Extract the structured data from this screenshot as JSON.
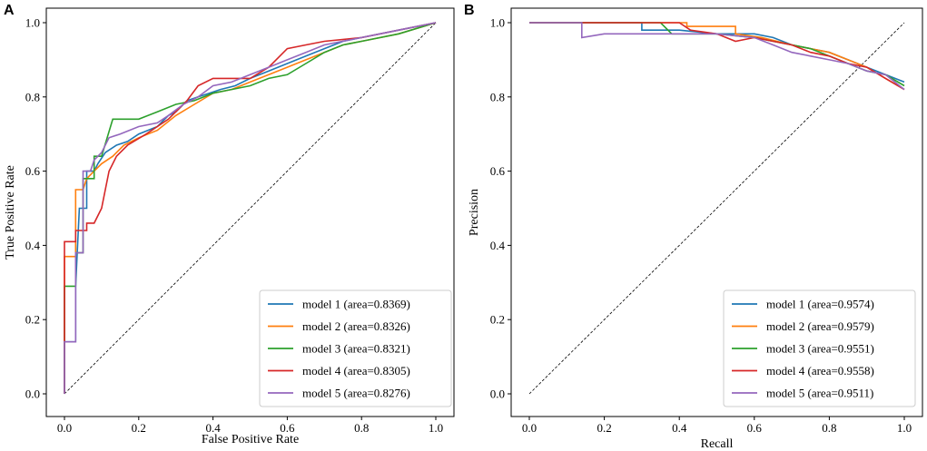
{
  "chart_data": [
    {
      "type": "line",
      "panel": "A",
      "xlabel": "False Positive Rate",
      "ylabel": "True Positive Rate",
      "xlim": [
        0.0,
        1.0
      ],
      "ylim": [
        0.0,
        1.0
      ],
      "xticks": [
        "0.0",
        "0.2",
        "0.4",
        "0.6",
        "0.8",
        "1.0"
      ],
      "yticks": [
        "0.0",
        "0.2",
        "0.4",
        "0.6",
        "0.8",
        "1.0"
      ],
      "legend_position": "lower-right",
      "diagonal": [
        [
          0,
          0
        ],
        [
          1,
          1
        ]
      ],
      "series": [
        {
          "name": "model 1 (area=0.8369)",
          "color": "#1f77b4",
          "points": [
            [
              0,
              0
            ],
            [
              0,
              0.14
            ],
            [
              0.03,
              0.14
            ],
            [
              0.03,
              0.29
            ],
            [
              0.04,
              0.5
            ],
            [
              0.06,
              0.5
            ],
            [
              0.06,
              0.6
            ],
            [
              0.08,
              0.6
            ],
            [
              0.09,
              0.62
            ],
            [
              0.11,
              0.65
            ],
            [
              0.14,
              0.67
            ],
            [
              0.17,
              0.68
            ],
            [
              0.2,
              0.7
            ],
            [
              0.25,
              0.72
            ],
            [
              0.28,
              0.75
            ],
            [
              0.3,
              0.76
            ],
            [
              0.33,
              0.79
            ],
            [
              0.36,
              0.8
            ],
            [
              0.39,
              0.81
            ],
            [
              0.42,
              0.82
            ],
            [
              0.46,
              0.83
            ],
            [
              0.5,
              0.85
            ],
            [
              0.55,
              0.87
            ],
            [
              0.6,
              0.89
            ],
            [
              0.65,
              0.91
            ],
            [
              0.7,
              0.93
            ],
            [
              0.75,
              0.95
            ],
            [
              0.8,
              0.96
            ],
            [
              0.9,
              0.98
            ],
            [
              1,
              1
            ]
          ]
        },
        {
          "name": "model 2 (area=0.8326)",
          "color": "#ff7f0e",
          "points": [
            [
              0,
              0
            ],
            [
              0,
              0.37
            ],
            [
              0.03,
              0.37
            ],
            [
              0.03,
              0.55
            ],
            [
              0.05,
              0.55
            ],
            [
              0.06,
              0.58
            ],
            [
              0.08,
              0.6
            ],
            [
              0.1,
              0.62
            ],
            [
              0.13,
              0.64
            ],
            [
              0.16,
              0.67
            ],
            [
              0.2,
              0.69
            ],
            [
              0.25,
              0.71
            ],
            [
              0.3,
              0.75
            ],
            [
              0.35,
              0.78
            ],
            [
              0.4,
              0.81
            ],
            [
              0.45,
              0.82
            ],
            [
              0.5,
              0.84
            ],
            [
              0.55,
              0.86
            ],
            [
              0.6,
              0.88
            ],
            [
              0.65,
              0.9
            ],
            [
              0.7,
              0.92
            ],
            [
              0.75,
              0.94
            ],
            [
              0.8,
              0.95
            ],
            [
              0.9,
              0.97
            ],
            [
              1,
              1
            ]
          ]
        },
        {
          "name": "model 3 (area=0.8321)",
          "color": "#2ca02c",
          "points": [
            [
              0,
              0
            ],
            [
              0,
              0.29
            ],
            [
              0.03,
              0.29
            ],
            [
              0.03,
              0.38
            ],
            [
              0.05,
              0.38
            ],
            [
              0.05,
              0.58
            ],
            [
              0.08,
              0.58
            ],
            [
              0.08,
              0.64
            ],
            [
              0.1,
              0.64
            ],
            [
              0.13,
              0.74
            ],
            [
              0.2,
              0.74
            ],
            [
              0.25,
              0.76
            ],
            [
              0.3,
              0.78
            ],
            [
              0.35,
              0.79
            ],
            [
              0.4,
              0.81
            ],
            [
              0.45,
              0.82
            ],
            [
              0.5,
              0.83
            ],
            [
              0.55,
              0.85
            ],
            [
              0.6,
              0.86
            ],
            [
              0.65,
              0.89
            ],
            [
              0.7,
              0.92
            ],
            [
              0.75,
              0.94
            ],
            [
              0.8,
              0.95
            ],
            [
              0.9,
              0.97
            ],
            [
              1,
              1
            ]
          ]
        },
        {
          "name": "model 4 (area=0.8305)",
          "color": "#d62728",
          "points": [
            [
              0,
              0
            ],
            [
              0,
              0.41
            ],
            [
              0.03,
              0.41
            ],
            [
              0.03,
              0.44
            ],
            [
              0.06,
              0.44
            ],
            [
              0.06,
              0.46
            ],
            [
              0.08,
              0.46
            ],
            [
              0.1,
              0.5
            ],
            [
              0.11,
              0.55
            ],
            [
              0.12,
              0.6
            ],
            [
              0.14,
              0.64
            ],
            [
              0.17,
              0.67
            ],
            [
              0.22,
              0.7
            ],
            [
              0.28,
              0.74
            ],
            [
              0.33,
              0.79
            ],
            [
              0.36,
              0.83
            ],
            [
              0.4,
              0.85
            ],
            [
              0.5,
              0.85
            ],
            [
              0.55,
              0.88
            ],
            [
              0.6,
              0.93
            ],
            [
              0.65,
              0.94
            ],
            [
              0.7,
              0.95
            ],
            [
              0.8,
              0.96
            ],
            [
              0.9,
              0.98
            ],
            [
              1,
              1
            ]
          ]
        },
        {
          "name": "model 5 (area=0.8276)",
          "color": "#9467bd",
          "points": [
            [
              0,
              0
            ],
            [
              0,
              0.14
            ],
            [
              0.03,
              0.14
            ],
            [
              0.03,
              0.38
            ],
            [
              0.05,
              0.38
            ],
            [
              0.05,
              0.6
            ],
            [
              0.07,
              0.6
            ],
            [
              0.08,
              0.63
            ],
            [
              0.1,
              0.65
            ],
            [
              0.12,
              0.69
            ],
            [
              0.15,
              0.7
            ],
            [
              0.2,
              0.72
            ],
            [
              0.25,
              0.73
            ],
            [
              0.28,
              0.75
            ],
            [
              0.32,
              0.78
            ],
            [
              0.36,
              0.8
            ],
            [
              0.4,
              0.83
            ],
            [
              0.45,
              0.84
            ],
            [
              0.5,
              0.86
            ],
            [
              0.55,
              0.88
            ],
            [
              0.6,
              0.9
            ],
            [
              0.65,
              0.92
            ],
            [
              0.7,
              0.94
            ],
            [
              0.8,
              0.96
            ],
            [
              0.9,
              0.98
            ],
            [
              1,
              1
            ]
          ]
        }
      ]
    },
    {
      "type": "line",
      "panel": "B",
      "xlabel": "Recall",
      "ylabel": "Precision",
      "xlim": [
        0.0,
        1.0
      ],
      "ylim": [
        0.0,
        1.0
      ],
      "xticks": [
        "0.0",
        "0.2",
        "0.4",
        "0.6",
        "0.8",
        "1.0"
      ],
      "yticks": [
        "0.0",
        "0.2",
        "0.4",
        "0.6",
        "0.8",
        "1.0"
      ],
      "legend_position": "lower-right",
      "diagonal": [
        [
          0,
          0
        ],
        [
          1,
          1
        ]
      ],
      "series": [
        {
          "name": "model 1 (area=0.9574)",
          "color": "#1f77b4",
          "points": [
            [
              0,
              1
            ],
            [
              0.3,
              1
            ],
            [
              0.3,
              0.98
            ],
            [
              0.4,
              0.98
            ],
            [
              0.5,
              0.97
            ],
            [
              0.6,
              0.97
            ],
            [
              0.65,
              0.96
            ],
            [
              0.7,
              0.94
            ],
            [
              0.75,
              0.93
            ],
            [
              0.8,
              0.92
            ],
            [
              0.85,
              0.9
            ],
            [
              0.9,
              0.88
            ],
            [
              0.95,
              0.86
            ],
            [
              1,
              0.84
            ]
          ]
        },
        {
          "name": "model 2 (area=0.9579)",
          "color": "#ff7f0e",
          "points": [
            [
              0,
              1
            ],
            [
              0.42,
              1
            ],
            [
              0.42,
              0.99
            ],
            [
              0.55,
              0.99
            ],
            [
              0.55,
              0.97
            ],
            [
              0.62,
              0.96
            ],
            [
              0.7,
              0.94
            ],
            [
              0.75,
              0.93
            ],
            [
              0.8,
              0.92
            ],
            [
              0.85,
              0.9
            ],
            [
              0.9,
              0.88
            ],
            [
              0.95,
              0.85
            ],
            [
              1,
              0.82
            ]
          ]
        },
        {
          "name": "model 3 (area=0.9551)",
          "color": "#2ca02c",
          "points": [
            [
              0,
              1
            ],
            [
              0.35,
              1
            ],
            [
              0.38,
              0.97
            ],
            [
              0.5,
              0.97
            ],
            [
              0.6,
              0.96
            ],
            [
              0.65,
              0.95
            ],
            [
              0.7,
              0.94
            ],
            [
              0.75,
              0.93
            ],
            [
              0.8,
              0.91
            ],
            [
              0.85,
              0.89
            ],
            [
              0.9,
              0.87
            ],
            [
              0.95,
              0.86
            ],
            [
              1,
              0.83
            ]
          ]
        },
        {
          "name": "model 4 (area=0.9558)",
          "color": "#d62728",
          "points": [
            [
              0,
              1
            ],
            [
              0.4,
              1
            ],
            [
              0.43,
              0.98
            ],
            [
              0.5,
              0.97
            ],
            [
              0.55,
              0.95
            ],
            [
              0.6,
              0.96
            ],
            [
              0.65,
              0.95
            ],
            [
              0.7,
              0.94
            ],
            [
              0.75,
              0.92
            ],
            [
              0.8,
              0.91
            ],
            [
              0.85,
              0.89
            ],
            [
              0.9,
              0.88
            ],
            [
              0.95,
              0.85
            ],
            [
              1,
              0.82
            ]
          ]
        },
        {
          "name": "model 5 (area=0.9511)",
          "color": "#9467bd",
          "points": [
            [
              0,
              1
            ],
            [
              0.14,
              1
            ],
            [
              0.14,
              0.96
            ],
            [
              0.2,
              0.97
            ],
            [
              0.3,
              0.97
            ],
            [
              0.4,
              0.97
            ],
            [
              0.5,
              0.97
            ],
            [
              0.6,
              0.96
            ],
            [
              0.65,
              0.94
            ],
            [
              0.7,
              0.92
            ],
            [
              0.75,
              0.91
            ],
            [
              0.8,
              0.9
            ],
            [
              0.85,
              0.89
            ],
            [
              0.9,
              0.87
            ],
            [
              0.95,
              0.86
            ],
            [
              1,
              0.82
            ]
          ]
        }
      ]
    }
  ]
}
